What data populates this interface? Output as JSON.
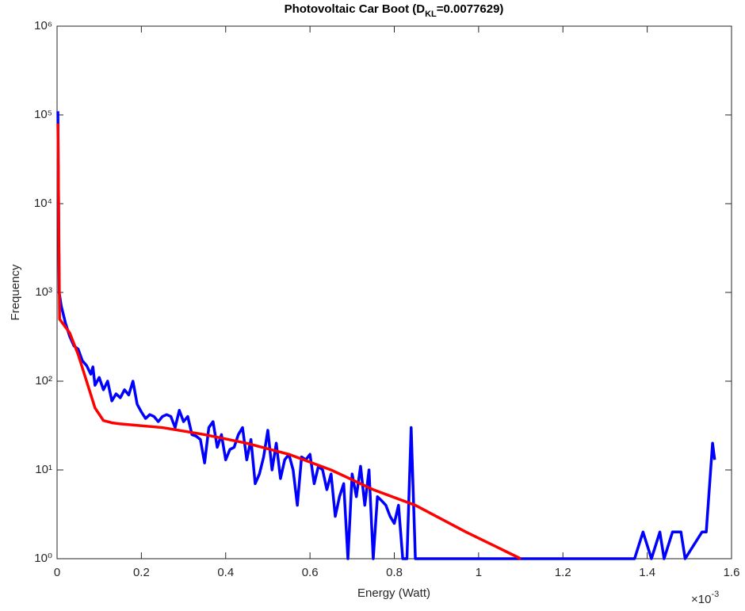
{
  "chart_data": {
    "type": "line",
    "title": [
      "Photovoltaic Car Boot (D",
      "KL",
      "=0.0077629)"
    ],
    "x_label": "Energy (Watt)",
    "y_label": "Frequency",
    "x_multiplier": [
      "×10",
      "-3"
    ],
    "xlim": [
      0,
      1.6
    ],
    "xticks": [
      0,
      0.2,
      0.4,
      0.6,
      0.8,
      1,
      1.2,
      1.4,
      1.6
    ],
    "ylim": [
      1,
      1000000
    ],
    "yticks": [
      {
        "value": 1,
        "label": "10⁰"
      },
      {
        "value": 10,
        "label": "10¹"
      },
      {
        "value": 100,
        "label": "10²"
      },
      {
        "value": 1000,
        "label": "10³"
      },
      {
        "value": 10000,
        "label": "10⁴"
      },
      {
        "value": 100000,
        "label": "10⁵"
      },
      {
        "value": 1000000,
        "label": "10⁶"
      }
    ],
    "y_scale": "log",
    "grid": false,
    "series": [
      {
        "color": "#0000ff",
        "x": [
          0.002,
          0.005,
          0.01,
          0.02,
          0.03,
          0.04,
          0.05,
          0.06,
          0.07,
          0.08,
          0.085,
          0.09,
          0.1,
          0.11,
          0.12,
          0.13,
          0.14,
          0.15,
          0.16,
          0.17,
          0.18,
          0.19,
          0.2,
          0.21,
          0.22,
          0.23,
          0.24,
          0.25,
          0.26,
          0.27,
          0.28,
          0.29,
          0.3,
          0.31,
          0.32,
          0.33,
          0.34,
          0.35,
          0.36,
          0.37,
          0.38,
          0.39,
          0.4,
          0.41,
          0.42,
          0.43,
          0.44,
          0.45,
          0.46,
          0.47,
          0.48,
          0.49,
          0.5,
          0.51,
          0.52,
          0.53,
          0.54,
          0.55,
          0.56,
          0.57,
          0.58,
          0.59,
          0.6,
          0.61,
          0.62,
          0.63,
          0.64,
          0.65,
          0.66,
          0.67,
          0.68,
          0.69,
          0.7,
          0.71,
          0.72,
          0.73,
          0.74,
          0.75,
          0.76,
          0.77,
          0.78,
          0.79,
          0.8,
          0.81,
          0.82,
          0.83,
          0.84,
          0.85,
          0.9,
          1.0,
          1.1,
          1.2,
          1.3,
          1.37,
          1.39,
          1.41,
          1.43,
          1.44,
          1.46,
          1.48,
          1.49,
          1.53,
          1.54,
          1.555,
          1.56
        ],
        "values": [
          110000,
          1000,
          700,
          450,
          320,
          250,
          230,
          170,
          150,
          120,
          145,
          90,
          110,
          80,
          100,
          60,
          72,
          65,
          80,
          70,
          100,
          55,
          45,
          38,
          42,
          40,
          35,
          40,
          42,
          40,
          30,
          47,
          35,
          40,
          25,
          24,
          22,
          12,
          30,
          35,
          18,
          25,
          13,
          17,
          18,
          25,
          30,
          13,
          22,
          7,
          9,
          14,
          28,
          10,
          20,
          8,
          13,
          15,
          10,
          4,
          14,
          13,
          15,
          7,
          11,
          10,
          6,
          9,
          3,
          5,
          7,
          1,
          9,
          5,
          11,
          4,
          10,
          1,
          5,
          4.5,
          4,
          3,
          2.5,
          4,
          1,
          1,
          30,
          1,
          1,
          1,
          1,
          1,
          1,
          1,
          2,
          1,
          2,
          1,
          2,
          2,
          1,
          2,
          2,
          20,
          13
        ]
      },
      {
        "color": "#ff0000",
        "x": [
          0.002,
          0.006,
          0.03,
          0.05,
          0.07,
          0.09,
          0.11,
          0.13,
          0.15,
          0.25,
          0.35,
          0.45,
          0.55,
          0.65,
          0.75,
          0.85,
          0.97,
          1.1
        ],
        "values": [
          80000,
          500,
          350,
          200,
          100,
          50,
          36,
          34,
          33,
          30,
          25,
          20,
          15,
          10,
          6,
          4,
          2,
          1
        ]
      }
    ]
  }
}
